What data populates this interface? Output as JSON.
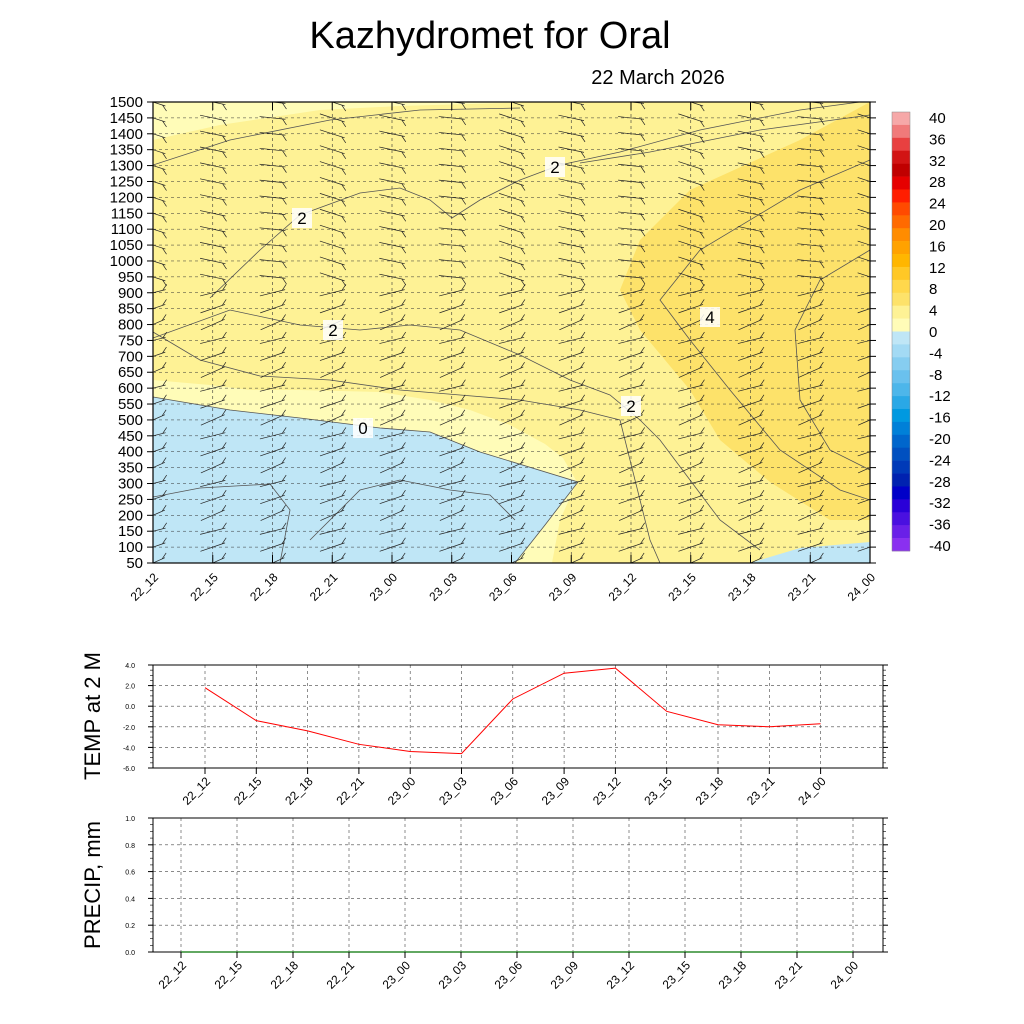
{
  "header": {
    "title": "Kazhydromet  for Oral",
    "date": "22 March 2026"
  },
  "colors": {
    "line": "#ff0000",
    "precip_line": "#2e8b2e",
    "zero_fill": "#fffcb8",
    "pos2_fill": "#fef295",
    "pos4_fill": "#fde26a",
    "neg_fill": "#bfe6f6",
    "grid": "#444444"
  },
  "chart_data": [
    {
      "id": "cross_section",
      "type": "heatmap",
      "title": "Kazhydromet  for Oral",
      "subtitle": "22 March 2026",
      "x": [
        "22_12",
        "22_15",
        "22_18",
        "22_21",
        "23_00",
        "23_03",
        "23_06",
        "23_09",
        "23_12",
        "23_15",
        "23_18",
        "23_21",
        "24_00"
      ],
      "y_ticks": [
        "1500",
        "1450",
        "1400",
        "1350",
        "1300",
        "1250",
        "1200",
        "1150",
        "1100",
        "1050",
        "1000",
        "950",
        "900",
        "850",
        "800",
        "750",
        "700",
        "650",
        "600",
        "550",
        "500",
        "450",
        "400",
        "350",
        "300",
        "250",
        "200",
        "150",
        "100",
        "50"
      ],
      "ylim": [
        50,
        1500
      ],
      "contour_labels": [
        "2",
        "2",
        "2",
        "0",
        "2",
        "4"
      ],
      "colorbar": {
        "ticks": [
          "40",
          "36",
          "32",
          "28",
          "24",
          "20",
          "16",
          "12",
          "8",
          "4",
          "0",
          "-4",
          "-8",
          "-12",
          "-16",
          "-20",
          "-24",
          "-28",
          "-32",
          "-36",
          "-40"
        ],
        "colors": [
          "#f6a8a8",
          "#f07a7a",
          "#e84040",
          "#d21414",
          "#c00000",
          "#e60000",
          "#ff1e00",
          "#ff4a00",
          "#ff6a00",
          "#ff8c00",
          "#ffa200",
          "#ffb600",
          "#ffc826",
          "#ffd84c",
          "#fde26a",
          "#fef295",
          "#fffcb8",
          "#bfe6f6",
          "#a3daf4",
          "#86cdf0",
          "#6ac1ee",
          "#4db6ea",
          "#2aa8e6",
          "#0099e0",
          "#0080d8",
          "#0066cc",
          "#0050c0",
          "#003ab8",
          "#0022b0",
          "#0000c8",
          "#2a00d8",
          "#4a10e0",
          "#6a20e8",
          "#8a30f0"
        ]
      }
    },
    {
      "id": "temp_2m",
      "type": "line",
      "ylabel": "TEMP at 2 M",
      "ylim": [
        -6,
        4
      ],
      "y_ticks": [
        "4.0",
        "2.0",
        "0.0",
        "-2.0",
        "-4.0",
        "-6.0"
      ],
      "x": [
        "22_12",
        "22_15",
        "22_18",
        "22_21",
        "23_00",
        "23_03",
        "23_06",
        "23_09",
        "23_12",
        "23_15",
        "23_18",
        "23_21",
        "24_00"
      ],
      "series": [
        {
          "name": "TEMP at 2 M",
          "values": [
            1.8,
            -1.4,
            -2.4,
            -3.7,
            -4.4,
            -4.6,
            0.7,
            3.2,
            3.7,
            -0.5,
            -1.8,
            -2.0,
            -1.7
          ]
        }
      ]
    },
    {
      "id": "precip",
      "type": "line",
      "ylabel": "PRECIP, mm",
      "ylim": [
        0,
        1
      ],
      "y_ticks": [
        "1.0",
        "0.8",
        "0.6",
        "0.4",
        "0.2",
        "0.0"
      ],
      "x": [
        "22_12",
        "22_15",
        "22_18",
        "22_21",
        "23_00",
        "23_03",
        "23_06",
        "23_09",
        "23_12",
        "23_15",
        "23_18",
        "23_21",
        "24_00"
      ],
      "series": [
        {
          "name": "PRECIP, mm",
          "values": [
            0,
            0,
            0,
            0,
            0,
            0,
            0,
            0,
            0,
            0,
            0,
            0,
            0
          ]
        }
      ]
    }
  ]
}
